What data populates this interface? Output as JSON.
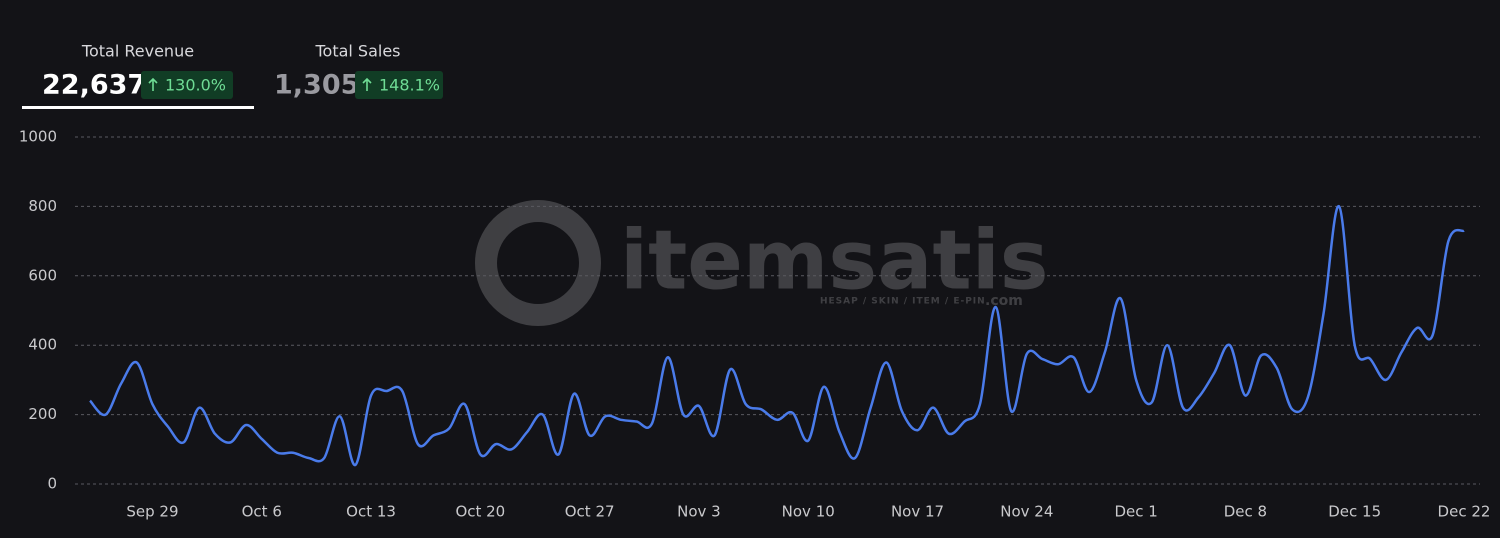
{
  "stats": [
    {
      "label": "Total Revenue",
      "value": "22,637",
      "change": "130.0%"
    },
    {
      "label": "Total Sales",
      "value": "1,305",
      "change": "148.1%"
    }
  ],
  "watermark": {
    "name": "itemsatis",
    "tagline": "HESAP / SKIN / ITEM / E-PIN",
    "suffix": ".com"
  },
  "chart_data": {
    "type": "line",
    "categories": [
      null,
      null,
      null,
      null,
      "Sep 29",
      null,
      null,
      null,
      null,
      null,
      null,
      "Oct 6",
      null,
      null,
      null,
      null,
      null,
      null,
      "Oct 13",
      null,
      null,
      null,
      null,
      null,
      null,
      "Oct 20",
      null,
      null,
      null,
      null,
      null,
      null,
      "Oct 27",
      null,
      null,
      null,
      null,
      null,
      null,
      "Nov 3",
      null,
      null,
      null,
      null,
      null,
      null,
      "Nov 10",
      null,
      null,
      null,
      null,
      null,
      null,
      "Nov 17",
      null,
      null,
      null,
      null,
      null,
      null,
      "Nov 24",
      null,
      null,
      null,
      null,
      null,
      null,
      "Dec 1",
      null,
      null,
      null,
      null,
      null,
      null,
      "Dec 8",
      null,
      null,
      null,
      null,
      null,
      null,
      "Dec 15",
      null,
      null,
      null,
      null,
      null,
      null,
      "Dec 22"
    ],
    "series": [
      {
        "name": "Total Revenue",
        "color": "#4a7bea",
        "values": [
          240,
          200,
          290,
          350,
          230,
          165,
          120,
          220,
          145,
          120,
          170,
          130,
          90,
          90,
          75,
          75,
          195,
          55,
          255,
          268,
          268,
          115,
          140,
          160,
          230,
          85,
          115,
          100,
          150,
          200,
          85,
          260,
          140,
          195,
          185,
          180,
          175,
          365,
          200,
          225,
          140,
          330,
          230,
          215,
          185,
          205,
          125,
          280,
          150,
          75,
          220,
          350,
          210,
          155,
          220,
          145,
          180,
          230,
          510,
          210,
          375,
          360,
          345,
          365,
          265,
          380,
          535,
          300,
          235,
          400,
          220,
          250,
          320,
          400,
          255,
          370,
          335,
          215,
          250,
          490,
          800,
          400,
          360,
          300,
          380,
          450,
          430,
          700,
          730
        ]
      }
    ],
    "ylim": [
      0,
      1000
    ],
    "yticks": [
      0,
      200,
      400,
      600,
      800,
      1000
    ],
    "grid": true
  }
}
